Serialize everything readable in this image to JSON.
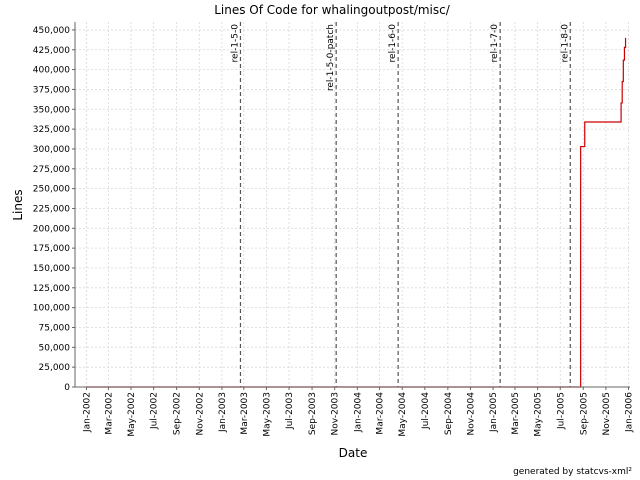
{
  "chart_data": {
    "type": "line",
    "title": "Lines Of Code for whalingoutpost/misc/",
    "xlabel": "Date",
    "ylabel": "Lines",
    "footer": "generated by statcvs-xml²",
    "ylim": [
      0,
      460000
    ],
    "xlim": [
      "2001-12-01",
      "2006-01-05"
    ],
    "grid": true,
    "y_ticks": [
      0,
      25000,
      50000,
      75000,
      100000,
      125000,
      150000,
      175000,
      200000,
      225000,
      250000,
      275000,
      300000,
      325000,
      350000,
      375000,
      400000,
      425000,
      450000
    ],
    "y_tick_labels": [
      "0",
      "25,000",
      "50,000",
      "75,000",
      "100,000",
      "125,000",
      "150,000",
      "175,000",
      "200,000",
      "225,000",
      "250,000",
      "275,000",
      "300,000",
      "325,000",
      "350,000",
      "375,000",
      "400,000",
      "425,000",
      "450,000"
    ],
    "x_ticks": [
      {
        "label": "Jan-2002",
        "date": "2002-01-01"
      },
      {
        "label": "Mar-2002",
        "date": "2002-03-01"
      },
      {
        "label": "May-2002",
        "date": "2002-05-01"
      },
      {
        "label": "Jul-2002",
        "date": "2002-07-01"
      },
      {
        "label": "Sep-2002",
        "date": "2002-09-01"
      },
      {
        "label": "Nov-2002",
        "date": "2002-11-01"
      },
      {
        "label": "Jan-2003",
        "date": "2003-01-01"
      },
      {
        "label": "Mar-2003",
        "date": "2003-03-01"
      },
      {
        "label": "May-2003",
        "date": "2003-05-01"
      },
      {
        "label": "Jul-2003",
        "date": "2003-07-01"
      },
      {
        "label": "Sep-2003",
        "date": "2003-09-01"
      },
      {
        "label": "Nov-2003",
        "date": "2003-11-01"
      },
      {
        "label": "Jan-2004",
        "date": "2004-01-01"
      },
      {
        "label": "Mar-2004",
        "date": "2004-03-01"
      },
      {
        "label": "May-2004",
        "date": "2004-05-01"
      },
      {
        "label": "Jul-2004",
        "date": "2004-07-01"
      },
      {
        "label": "Sep-2004",
        "date": "2004-09-01"
      },
      {
        "label": "Nov-2004",
        "date": "2004-11-01"
      },
      {
        "label": "Jan-2005",
        "date": "2005-01-01"
      },
      {
        "label": "Mar-2005",
        "date": "2005-03-01"
      },
      {
        "label": "May-2005",
        "date": "2005-05-01"
      },
      {
        "label": "Jul-2005",
        "date": "2005-07-01"
      },
      {
        "label": "Sep-2005",
        "date": "2005-09-01"
      },
      {
        "label": "Nov-2005",
        "date": "2005-11-01"
      },
      {
        "label": "Jan-2006",
        "date": "2006-01-01"
      }
    ],
    "markers": [
      {
        "label": "rel-1-5-0",
        "date": "2003-02-20"
      },
      {
        "label": "rel-1-5-0-patch",
        "date": "2003-11-05"
      },
      {
        "label": "rel-1-6-0",
        "date": "2004-04-20"
      },
      {
        "label": "rel-1-7-0",
        "date": "2005-01-20"
      },
      {
        "label": "rel-1-8-0",
        "date": "2005-07-28"
      }
    ],
    "series": [
      {
        "color": "#cc0000",
        "step": true,
        "points": [
          {
            "x": "2002-01-01",
            "y": 0
          },
          {
            "x": "2005-08-25",
            "y": 0
          },
          {
            "x": "2005-08-25",
            "y": 303000
          },
          {
            "x": "2005-09-05",
            "y": 303000
          },
          {
            "x": "2005-09-05",
            "y": 334000
          },
          {
            "x": "2005-12-12",
            "y": 334000
          },
          {
            "x": "2005-12-12",
            "y": 358000
          },
          {
            "x": "2005-12-15",
            "y": 358000
          },
          {
            "x": "2005-12-15",
            "y": 385000
          },
          {
            "x": "2005-12-18",
            "y": 385000
          },
          {
            "x": "2005-12-18",
            "y": 412000
          },
          {
            "x": "2005-12-21",
            "y": 412000
          },
          {
            "x": "2005-12-21",
            "y": 428000
          },
          {
            "x": "2005-12-24",
            "y": 428000
          },
          {
            "x": "2005-12-24",
            "y": 440000
          }
        ]
      }
    ]
  }
}
